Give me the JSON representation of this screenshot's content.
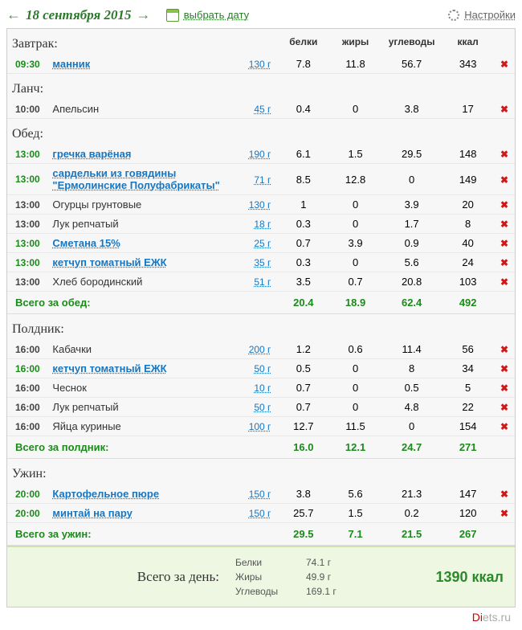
{
  "header": {
    "arrow_left": "←",
    "arrow_right": "→",
    "date": "18 сентября 2015",
    "pick_date": "выбрать дату",
    "settings": "Настройки"
  },
  "columns": {
    "protein": "белки",
    "fat": "жиры",
    "carbs": "углеводы",
    "kcal": "ккал"
  },
  "meals": [
    {
      "title": "Завтрак:",
      "items": [
        {
          "time": "09:30",
          "food": "манник",
          "link": true,
          "amount": "130 г",
          "p": "7.8",
          "f": "11.8",
          "c": "56.7",
          "k": "343"
        }
      ]
    },
    {
      "title": "Ланч:",
      "items": [
        {
          "time": "10:00",
          "food": "Апельсин",
          "link": false,
          "amount": "45 г",
          "p": "0.4",
          "f": "0",
          "c": "3.8",
          "k": "17"
        }
      ]
    },
    {
      "title": "Обед:",
      "items": [
        {
          "time": "13:00",
          "food": "гречка варёная",
          "link": true,
          "amount": "190 г",
          "p": "6.1",
          "f": "1.5",
          "c": "29.5",
          "k": "148"
        },
        {
          "time": "13:00",
          "food": "сардельки из говядины \"Ермолинские Полуфабрикаты\"",
          "link": true,
          "amount": "71 г",
          "p": "8.5",
          "f": "12.8",
          "c": "0",
          "k": "149"
        },
        {
          "time": "13:00",
          "food": "Огурцы грунтовые",
          "link": false,
          "amount": "130 г",
          "p": "1",
          "f": "0",
          "c": "3.9",
          "k": "20"
        },
        {
          "time": "13:00",
          "food": "Лук репчатый",
          "link": false,
          "amount": "18 г",
          "p": "0.3",
          "f": "0",
          "c": "1.7",
          "k": "8"
        },
        {
          "time": "13:00",
          "food": "Сметана 15%",
          "link": true,
          "amount": "25 г",
          "p": "0.7",
          "f": "3.9",
          "c": "0.9",
          "k": "40"
        },
        {
          "time": "13:00",
          "food": "кетчуп томатный ЕЖК",
          "link": true,
          "amount": "35 г",
          "p": "0.3",
          "f": "0",
          "c": "5.6",
          "k": "24"
        },
        {
          "time": "13:00",
          "food": "Хлеб бородинский",
          "link": false,
          "amount": "51 г",
          "p": "3.5",
          "f": "0.7",
          "c": "20.8",
          "k": "103"
        }
      ],
      "subtotal": {
        "label": "Всего за обед:",
        "p": "20.4",
        "f": "18.9",
        "c": "62.4",
        "k": "492"
      }
    },
    {
      "title": "Полдник:",
      "items": [
        {
          "time": "16:00",
          "food": "Кабачки",
          "link": false,
          "amount": "200 г",
          "p": "1.2",
          "f": "0.6",
          "c": "11.4",
          "k": "56"
        },
        {
          "time": "16:00",
          "food": "кетчуп томатный ЕЖК",
          "link": true,
          "amount": "50 г",
          "p": "0.5",
          "f": "0",
          "c": "8",
          "k": "34"
        },
        {
          "time": "16:00",
          "food": "Чеснок",
          "link": false,
          "amount": "10 г",
          "p": "0.7",
          "f": "0",
          "c": "0.5",
          "k": "5"
        },
        {
          "time": "16:00",
          "food": "Лук репчатый",
          "link": false,
          "amount": "50 г",
          "p": "0.7",
          "f": "0",
          "c": "4.8",
          "k": "22"
        },
        {
          "time": "16:00",
          "food": "Яйца куриные",
          "link": false,
          "amount": "100 г",
          "p": "12.7",
          "f": "11.5",
          "c": "0",
          "k": "154"
        }
      ],
      "subtotal": {
        "label": "Всего за полдник:",
        "p": "16.0",
        "f": "12.1",
        "c": "24.7",
        "k": "271"
      }
    },
    {
      "title": "Ужин:",
      "items": [
        {
          "time": "20:00",
          "food": "Картофельное пюре",
          "link": true,
          "amount": "150 г",
          "p": "3.8",
          "f": "5.6",
          "c": "21.3",
          "k": "147"
        },
        {
          "time": "20:00",
          "food": "минтай на пару",
          "link": true,
          "amount": "150 г",
          "p": "25.7",
          "f": "1.5",
          "c": "0.2",
          "k": "120"
        }
      ],
      "subtotal": {
        "label": "Всего за ужин:",
        "p": "29.5",
        "f": "7.1",
        "c": "21.5",
        "k": "267"
      }
    }
  ],
  "day_total": {
    "label": "Всего за день:",
    "protein_label": "Белки",
    "fat_label": "Жиры",
    "carb_label": "Углеводы",
    "protein": "74.1 г",
    "fat": "49.9 г",
    "carbs": "169.1 г",
    "kcal": "1390 ккал"
  },
  "footer": {
    "site_prefix": "Di",
    "site_suffix": "ets.ru"
  }
}
